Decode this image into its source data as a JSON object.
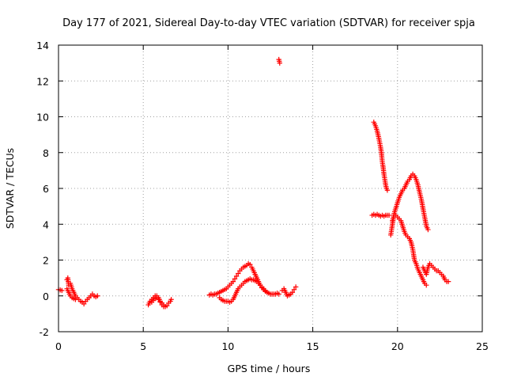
{
  "chart_data": {
    "type": "scatter",
    "title": "Day 177 of 2021, Sidereal Day-to-day VTEC variation (SDTVAR) for receiver spja",
    "xlabel": "GPS time / hours",
    "ylabel": "SDTVAR / TECUs",
    "xlim": [
      0,
      25
    ],
    "ylim": [
      -2,
      14
    ],
    "xticks": [
      0,
      5,
      10,
      15,
      20,
      25
    ],
    "yticks": [
      -2,
      0,
      2,
      4,
      6,
      8,
      10,
      12,
      14
    ],
    "grid": true,
    "marker": "+",
    "color": "#ff0000",
    "series": [
      {
        "name": "SDTVAR",
        "segments": [
          [
            [
              0.0,
              0.35
            ],
            [
              0.1,
              0.33
            ],
            [
              0.2,
              0.3
            ]
          ],
          [
            [
              0.5,
              0.9
            ],
            [
              0.55,
              1.0
            ],
            [
              0.6,
              0.6
            ],
            [
              0.7,
              0.7
            ],
            [
              0.8,
              0.4
            ],
            [
              0.9,
              0.2
            ],
            [
              1.0,
              0.0
            ],
            [
              1.1,
              -0.1
            ],
            [
              1.2,
              -0.2
            ],
            [
              1.3,
              -0.3
            ],
            [
              1.4,
              -0.35
            ],
            [
              1.5,
              -0.45
            ],
            [
              1.6,
              -0.3
            ],
            [
              1.7,
              -0.2
            ],
            [
              1.8,
              -0.1
            ],
            [
              1.9,
              0.0
            ],
            [
              2.0,
              0.1
            ],
            [
              2.1,
              0.0
            ],
            [
              2.2,
              -0.05
            ],
            [
              2.3,
              0.0
            ]
          ],
          [
            [
              0.5,
              0.4
            ],
            [
              0.6,
              0.2
            ],
            [
              0.7,
              0.0
            ],
            [
              0.8,
              -0.1
            ],
            [
              0.9,
              -0.15
            ],
            [
              1.0,
              -0.2
            ]
          ],
          [
            [
              5.3,
              -0.5
            ],
            [
              5.4,
              -0.3
            ],
            [
              5.5,
              -0.2
            ],
            [
              5.6,
              -0.1
            ],
            [
              5.7,
              0.0
            ],
            [
              5.8,
              0.0
            ],
            [
              5.9,
              -0.1
            ],
            [
              6.0,
              -0.3
            ],
            [
              6.1,
              -0.4
            ],
            [
              6.2,
              -0.5
            ],
            [
              6.3,
              -0.6
            ],
            [
              6.4,
              -0.55
            ],
            [
              6.5,
              -0.4
            ],
            [
              6.6,
              -0.3
            ],
            [
              6.65,
              -0.2
            ]
          ],
          [
            [
              5.5,
              -0.35
            ],
            [
              5.6,
              -0.25
            ],
            [
              5.7,
              -0.15
            ],
            [
              5.8,
              -0.1
            ],
            [
              5.9,
              -0.2
            ],
            [
              6.0,
              -0.35
            ],
            [
              6.1,
              -0.5
            ],
            [
              6.2,
              -0.6
            ]
          ],
          [
            [
              8.9,
              0.05
            ],
            [
              9.0,
              0.1
            ],
            [
              9.1,
              0.05
            ],
            [
              9.2,
              0.1
            ],
            [
              9.3,
              0.1
            ],
            [
              9.4,
              0.15
            ],
            [
              9.5,
              0.2
            ],
            [
              9.6,
              0.25
            ],
            [
              9.7,
              0.3
            ],
            [
              9.8,
              0.35
            ],
            [
              9.9,
              0.4
            ],
            [
              10.0,
              0.5
            ],
            [
              10.1,
              0.6
            ],
            [
              10.2,
              0.7
            ],
            [
              10.3,
              0.8
            ],
            [
              10.4,
              0.95
            ],
            [
              10.5,
              1.1
            ],
            [
              10.6,
              1.25
            ],
            [
              10.7,
              1.4
            ],
            [
              10.8,
              1.5
            ],
            [
              10.9,
              1.6
            ],
            [
              11.0,
              1.65
            ],
            [
              11.1,
              1.7
            ],
            [
              11.2,
              1.8
            ],
            [
              11.3,
              1.75
            ],
            [
              11.4,
              1.6
            ],
            [
              11.5,
              1.4
            ],
            [
              11.6,
              1.2
            ],
            [
              11.7,
              1.0
            ],
            [
              11.8,
              0.8
            ],
            [
              11.9,
              0.6
            ],
            [
              12.0,
              0.45
            ],
            [
              12.1,
              0.35
            ],
            [
              12.2,
              0.25
            ],
            [
              12.3,
              0.2
            ],
            [
              12.4,
              0.15
            ],
            [
              12.5,
              0.1
            ],
            [
              12.6,
              0.1
            ],
            [
              12.7,
              0.1
            ],
            [
              12.8,
              0.1
            ],
            [
              12.9,
              0.15
            ],
            [
              13.0,
              0.1
            ]
          ],
          [
            [
              9.5,
              -0.1
            ],
            [
              9.6,
              -0.2
            ],
            [
              9.7,
              -0.25
            ],
            [
              9.8,
              -0.3
            ],
            [
              9.9,
              -0.3
            ],
            [
              10.0,
              -0.3
            ],
            [
              10.1,
              -0.35
            ],
            [
              10.2,
              -0.3
            ],
            [
              10.3,
              -0.2
            ],
            [
              10.4,
              0.0
            ],
            [
              10.5,
              0.2
            ],
            [
              10.6,
              0.4
            ],
            [
              10.7,
              0.5
            ],
            [
              10.8,
              0.6
            ],
            [
              10.9,
              0.7
            ],
            [
              11.0,
              0.8
            ],
            [
              11.1,
              0.85
            ],
            [
              11.2,
              0.9
            ],
            [
              11.3,
              0.95
            ],
            [
              11.4,
              0.9
            ],
            [
              11.5,
              0.9
            ],
            [
              11.6,
              0.85
            ],
            [
              11.7,
              0.8
            ],
            [
              11.8,
              0.7
            ],
            [
              11.9,
              0.6
            ],
            [
              12.0,
              0.5
            ],
            [
              12.1,
              0.4
            ],
            [
              12.2,
              0.3
            ],
            [
              12.3,
              0.2
            ]
          ],
          [
            [
              13.0,
              13.2
            ],
            [
              13.05,
              13.0
            ]
          ],
          [
            [
              13.2,
              0.3
            ],
            [
              13.3,
              0.4
            ],
            [
              13.4,
              0.2
            ],
            [
              13.5,
              0.0
            ],
            [
              13.6,
              0.05
            ],
            [
              13.7,
              0.1
            ],
            [
              13.8,
              0.2
            ],
            [
              13.9,
              0.35
            ],
            [
              14.0,
              0.5
            ]
          ],
          [
            [
              18.6,
              9.7
            ],
            [
              18.7,
              9.5
            ],
            [
              18.8,
              9.2
            ],
            [
              18.9,
              8.8
            ],
            [
              19.0,
              8.3
            ],
            [
              19.05,
              8.0
            ],
            [
              19.1,
              7.5
            ],
            [
              19.15,
              7.2
            ],
            [
              19.2,
              6.8
            ],
            [
              19.25,
              6.5
            ],
            [
              19.3,
              6.2
            ],
            [
              19.35,
              6.0
            ],
            [
              19.4,
              5.9
            ]
          ],
          [
            [
              18.5,
              4.5
            ],
            [
              18.6,
              4.55
            ],
            [
              18.7,
              4.5
            ],
            [
              18.8,
              4.55
            ],
            [
              18.9,
              4.5
            ],
            [
              19.0,
              4.45
            ],
            [
              19.1,
              4.5
            ],
            [
              19.2,
              4.45
            ],
            [
              19.3,
              4.5
            ],
            [
              19.4,
              4.5
            ],
            [
              19.5,
              4.5
            ]
          ],
          [
            [
              19.6,
              3.4
            ],
            [
              19.65,
              3.7
            ],
            [
              19.7,
              4.0
            ],
            [
              19.75,
              4.3
            ],
            [
              19.8,
              4.6
            ],
            [
              19.9,
              4.9
            ],
            [
              20.0,
              5.2
            ],
            [
              20.1,
              5.5
            ],
            [
              20.2,
              5.7
            ],
            [
              20.3,
              5.9
            ],
            [
              20.4,
              6.0
            ],
            [
              20.5,
              6.2
            ],
            [
              20.6,
              6.4
            ],
            [
              20.7,
              6.5
            ],
            [
              20.8,
              6.7
            ],
            [
              20.9,
              6.8
            ],
            [
              21.0,
              6.7
            ],
            [
              21.1,
              6.5
            ],
            [
              21.2,
              6.2
            ],
            [
              21.3,
              5.8
            ],
            [
              21.4,
              5.4
            ],
            [
              21.5,
              4.9
            ],
            [
              21.6,
              4.4
            ],
            [
              21.7,
              3.9
            ],
            [
              21.8,
              3.7
            ]
          ],
          [
            [
              19.7,
              4.2
            ],
            [
              19.8,
              4.5
            ],
            [
              19.9,
              4.5
            ],
            [
              20.0,
              4.4
            ],
            [
              20.1,
              4.3
            ],
            [
              20.2,
              4.2
            ],
            [
              20.3,
              3.9
            ],
            [
              20.4,
              3.6
            ],
            [
              20.5,
              3.4
            ],
            [
              20.6,
              3.3
            ],
            [
              20.7,
              3.2
            ],
            [
              20.8,
              3.0
            ],
            [
              20.9,
              2.6
            ],
            [
              21.0,
              2.0
            ],
            [
              21.1,
              1.8
            ],
            [
              21.2,
              1.5
            ],
            [
              21.3,
              1.3
            ],
            [
              21.4,
              1.1
            ],
            [
              21.5,
              0.9
            ],
            [
              21.6,
              0.7
            ],
            [
              21.7,
              0.6
            ]
          ],
          [
            [
              21.5,
              1.6
            ],
            [
              21.6,
              1.4
            ],
            [
              21.7,
              1.2
            ],
            [
              21.8,
              1.6
            ],
            [
              21.9,
              1.8
            ],
            [
              22.0,
              1.7
            ],
            [
              22.1,
              1.6
            ],
            [
              22.2,
              1.5
            ],
            [
              22.3,
              1.4
            ],
            [
              22.4,
              1.4
            ],
            [
              22.5,
              1.3
            ],
            [
              22.6,
              1.2
            ],
            [
              22.7,
              1.1
            ],
            [
              22.8,
              0.9
            ],
            [
              22.9,
              0.8
            ],
            [
              23.0,
              0.8
            ]
          ]
        ]
      }
    ]
  }
}
